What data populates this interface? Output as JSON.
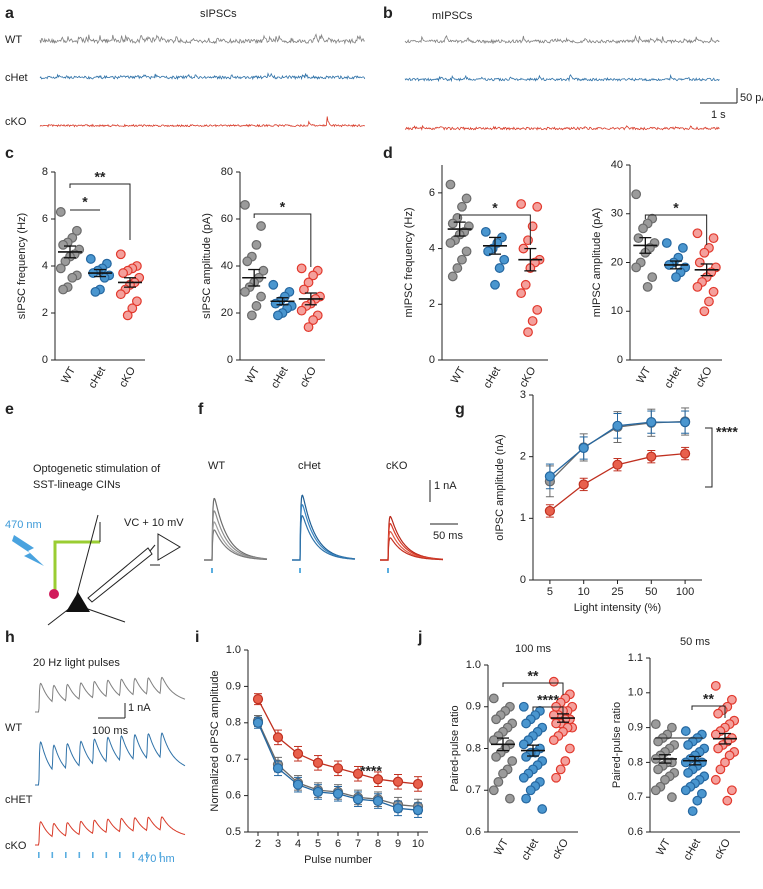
{
  "panels": [
    "a",
    "b",
    "c",
    "d",
    "e",
    "f",
    "g",
    "h",
    "i",
    "j"
  ],
  "panel_a": {
    "title": "sIPSCs",
    "labels": [
      "WT",
      "cHet",
      "cKO"
    ]
  },
  "panel_b": {
    "title": "mIPSCs",
    "scale": [
      "50 pA",
      "1 s"
    ]
  },
  "panel_e": {
    "title_lines": [
      "Optogenetic stimulation of",
      "SST-lineage CINs"
    ],
    "light": "470 nm",
    "clamp": "VC + 10 mV"
  },
  "panel_f": {
    "labels": [
      "WT",
      "cHet",
      "cKO"
    ],
    "scale": [
      "1 nA",
      "50 ms"
    ]
  },
  "panel_h": {
    "title": "20 Hz light pulses",
    "labels": [
      "WT",
      "cHET",
      "cKO"
    ],
    "scale": [
      "1 nA",
      "100 ms"
    ],
    "light": "470 nm"
  },
  "chart_data": [
    {
      "type": "strip",
      "ylabel": "sIPSC frequency (Hz)",
      "categories": [
        "WT",
        "cHet",
        "cKO"
      ],
      "series": [
        {
          "color": "#9b9b9b",
          "edgecolor": "#6a6a6a",
          "values": [
            6.3,
            5.5,
            5.2,
            5.0,
            4.9,
            4.7,
            4.5,
            4.4,
            4.2,
            3.9,
            3.6,
            3.5,
            3.1,
            3.0
          ],
          "mean": 4.6,
          "sem": 0.25
        },
        {
          "color": "#4a96cf",
          "edgecolor": "#2567a0",
          "values": [
            4.3,
            4.1,
            3.9,
            3.8,
            3.7,
            3.6,
            3.5,
            3.0,
            2.9
          ],
          "mean": 3.7,
          "sem": 0.15
        },
        {
          "color": "#f4a09c",
          "edgecolor": "#e2392d",
          "values": [
            4.5,
            4.0,
            3.9,
            3.8,
            3.7,
            3.5,
            3.3,
            3.2,
            3.0,
            2.8,
            2.5,
            2.2,
            1.9
          ],
          "mean": 3.3,
          "sem": 0.2
        }
      ],
      "ylim": [
        0,
        8
      ],
      "yticks": [
        0,
        2,
        4,
        6,
        8
      ],
      "annotations": [
        "**",
        "*"
      ]
    },
    {
      "type": "strip",
      "ylabel": "sIPSC amplitude (pA)",
      "categories": [
        "WT",
        "cHet",
        "cKO"
      ],
      "series": [
        {
          "color": "#9b9b9b",
          "edgecolor": "#6a6a6a",
          "values": [
            66,
            57,
            49,
            44,
            42,
            38,
            35,
            33,
            31,
            29,
            27,
            23,
            19
          ],
          "mean": 35,
          "sem": 3.5
        },
        {
          "color": "#4a96cf",
          "edgecolor": "#2567a0",
          "values": [
            32,
            29,
            27,
            25,
            24,
            23,
            22,
            20,
            19
          ],
          "mean": 25,
          "sem": 1.5
        },
        {
          "color": "#f4a09c",
          "edgecolor": "#e2392d",
          "values": [
            39,
            38,
            36,
            33,
            30,
            27,
            26,
            24,
            23,
            21,
            19,
            17,
            14
          ],
          "mean": 26,
          "sem": 2.5
        }
      ],
      "ylim": [
        0,
        80
      ],
      "yticks": [
        0,
        20,
        40,
        60,
        80
      ],
      "annotations": [
        "*"
      ]
    },
    {
      "type": "strip",
      "ylabel": "mIPSC frequency (Hz)",
      "categories": [
        "WT",
        "cHet",
        "cKO"
      ],
      "series": [
        {
          "color": "#9b9b9b",
          "edgecolor": "#6a6a6a",
          "values": [
            6.3,
            5.8,
            5.5,
            5.1,
            4.9,
            4.8,
            4.6,
            4.5,
            4.3,
            4.2,
            3.9,
            3.6,
            3.3,
            3.0
          ],
          "mean": 4.7,
          "sem": 0.25
        },
        {
          "color": "#4a96cf",
          "edgecolor": "#2567a0",
          "values": [
            4.6,
            4.4,
            4.2,
            4.0,
            3.9,
            3.6,
            3.3,
            2.7
          ],
          "mean": 4.1,
          "sem": 0.3
        },
        {
          "color": "#f4a09c",
          "edgecolor": "#e2392d",
          "values": [
            5.6,
            5.5,
            4.8,
            4.3,
            4.0,
            3.6,
            3.5,
            3.3,
            2.7,
            2.4,
            1.8,
            1.4,
            1.0
          ],
          "mean": 3.6,
          "sem": 0.4
        }
      ],
      "ylim": [
        0,
        7
      ],
      "yticks": [
        0,
        2,
        4,
        6
      ],
      "annotations": [
        "*"
      ]
    },
    {
      "type": "strip",
      "ylabel": "mIPSC amplitude (pA)",
      "categories": [
        "WT",
        "cHet",
        "cKO"
      ],
      "series": [
        {
          "color": "#9b9b9b",
          "edgecolor": "#6a6a6a",
          "values": [
            34,
            29,
            28,
            27,
            25,
            24,
            23,
            22,
            20,
            19,
            17,
            15
          ],
          "mean": 23.5,
          "sem": 1.6
        },
        {
          "color": "#4a96cf",
          "edgecolor": "#2567a0",
          "values": [
            24,
            23,
            21,
            20,
            19.5,
            19,
            18,
            17
          ],
          "mean": 19.5,
          "sem": 0.8
        },
        {
          "color": "#f4a09c",
          "edgecolor": "#e2392d",
          "values": [
            26,
            25,
            23,
            22,
            20,
            19,
            18,
            17,
            16,
            15,
            14,
            12,
            10
          ],
          "mean": 18.5,
          "sem": 1.2
        }
      ],
      "ylim": [
        0,
        40
      ],
      "yticks": [
        0,
        10,
        20,
        30,
        40
      ],
      "annotations": [
        "*"
      ]
    },
    {
      "type": "line",
      "ylabel": "oIPSC amplitude (nA)",
      "xlabel": "Light intensity (%)",
      "categories": [
        "5",
        "10",
        "25",
        "50",
        "100"
      ],
      "series": [
        {
          "color": "#9b9b9b",
          "edgecolor": "#6a6a6a",
          "values": [
            1.6,
            2.15,
            2.48,
            2.55,
            2.57
          ],
          "errors": [
            0.25,
            0.22,
            0.25,
            0.22,
            0.22
          ]
        },
        {
          "color": "#4a96cf",
          "edgecolor": "#2567a0",
          "values": [
            1.68,
            2.14,
            2.5,
            2.56,
            2.56
          ],
          "errors": [
            0.2,
            0.18,
            0.2,
            0.18,
            0.18
          ]
        },
        {
          "color": "#e8604c",
          "edgecolor": "#c03020",
          "values": [
            1.12,
            1.55,
            1.87,
            2.0,
            2.05
          ],
          "errors": [
            0.1,
            0.1,
            0.1,
            0.1,
            0.1
          ]
        }
      ],
      "ylim": [
        0,
        3
      ],
      "yticks": [
        0,
        1,
        2,
        3
      ],
      "annotations": [
        "****"
      ]
    },
    {
      "type": "line",
      "ylabel": "Normalized oIPSC amplitude",
      "xlabel": "Pulse number",
      "categories": [
        "2",
        "3",
        "4",
        "5",
        "6",
        "7",
        "8",
        "9",
        "10"
      ],
      "series": [
        {
          "color": "#9b9b9b",
          "edgecolor": "#6a6a6a",
          "values": [
            0.805,
            0.685,
            0.635,
            0.615,
            0.61,
            0.595,
            0.59,
            0.575,
            0.57
          ],
          "errors": [
            0.015,
            0.02,
            0.02,
            0.02,
            0.02,
            0.02,
            0.02,
            0.02,
            0.02
          ]
        },
        {
          "color": "#4a96cf",
          "edgecolor": "#2567a0",
          "values": [
            0.8,
            0.675,
            0.63,
            0.61,
            0.605,
            0.59,
            0.585,
            0.565,
            0.56
          ],
          "errors": [
            0.015,
            0.02,
            0.02,
            0.02,
            0.02,
            0.02,
            0.02,
            0.02,
            0.02
          ]
        },
        {
          "color": "#e8604c",
          "edgecolor": "#c03020",
          "values": [
            0.865,
            0.76,
            0.715,
            0.69,
            0.675,
            0.66,
            0.645,
            0.638,
            0.632
          ],
          "errors": [
            0.015,
            0.02,
            0.02,
            0.02,
            0.02,
            0.02,
            0.02,
            0.02,
            0.02
          ]
        }
      ],
      "ylim": [
        0.5,
        1
      ],
      "yticks": [
        0.5,
        0.6,
        0.7,
        0.8,
        0.9,
        {
          "value": 1,
          "label": "1.0"
        }
      ],
      "annotations": [
        "****"
      ]
    },
    {
      "type": "strip",
      "title": "100 ms",
      "ylabel": "Paired-pulse ratio",
      "categories": [
        "WT",
        "cHet",
        "cKO"
      ],
      "series": [
        {
          "color": "#9b9b9b",
          "edgecolor": "#6a6a6a",
          "values": [
            0.92,
            0.9,
            0.89,
            0.88,
            0.87,
            0.86,
            0.85,
            0.84,
            0.83,
            0.82,
            0.81,
            0.8,
            0.79,
            0.78,
            0.77,
            0.75,
            0.74,
            0.72,
            0.7,
            0.68
          ],
          "mean": 0.81,
          "sem": 0.015
        },
        {
          "color": "#4a96cf",
          "edgecolor": "#2567a0",
          "values": [
            0.9,
            0.89,
            0.88,
            0.87,
            0.86,
            0.85,
            0.84,
            0.83,
            0.82,
            0.81,
            0.8,
            0.79,
            0.79,
            0.78,
            0.77,
            0.76,
            0.75,
            0.74,
            0.73,
            0.72,
            0.71,
            0.7,
            0.68,
            0.655
          ],
          "mean": 0.795,
          "sem": 0.013
        },
        {
          "color": "#f4a09c",
          "edgecolor": "#e2392d",
          "values": [
            0.96,
            0.93,
            0.92,
            0.91,
            0.9,
            0.9,
            0.89,
            0.89,
            0.88,
            0.88,
            0.87,
            0.87,
            0.86,
            0.86,
            0.85,
            0.85,
            0.84,
            0.83,
            0.82,
            0.8,
            0.77,
            0.75,
            0.73
          ],
          "mean": 0.873,
          "sem": 0.01
        }
      ],
      "ylim": [
        0.6,
        1
      ],
      "yticks": [
        0.6,
        0.7,
        0.8,
        0.9,
        {
          "value": 1,
          "label": "1.0"
        }
      ],
      "annotations": [
        "**",
        "****"
      ]
    },
    {
      "type": "strip",
      "title": "50 ms",
      "ylabel": "Paired-pulse ratio",
      "categories": [
        "WT",
        "cHet",
        "cKO"
      ],
      "series": [
        {
          "color": "#9b9b9b",
          "edgecolor": "#6a6a6a",
          "values": [
            0.91,
            0.9,
            0.88,
            0.87,
            0.86,
            0.85,
            0.84,
            0.83,
            0.82,
            0.81,
            0.8,
            0.8,
            0.79,
            0.78,
            0.77,
            0.76,
            0.75,
            0.73,
            0.72,
            0.7
          ],
          "mean": 0.81,
          "sem": 0.012
        },
        {
          "color": "#4a96cf",
          "edgecolor": "#2567a0",
          "values": [
            0.89,
            0.88,
            0.87,
            0.86,
            0.85,
            0.84,
            0.83,
            0.82,
            0.81,
            0.8,
            0.8,
            0.79,
            0.78,
            0.77,
            0.76,
            0.75,
            0.74,
            0.73,
            0.72,
            0.71,
            0.69,
            0.66
          ],
          "mean": 0.805,
          "sem": 0.012
        },
        {
          "color": "#f4a09c",
          "edgecolor": "#e2392d",
          "values": [
            1.02,
            0.98,
            0.96,
            0.95,
            0.94,
            0.92,
            0.91,
            0.9,
            0.89,
            0.88,
            0.87,
            0.86,
            0.85,
            0.84,
            0.83,
            0.82,
            0.8,
            0.78,
            0.75,
            0.72,
            0.69
          ],
          "mean": 0.868,
          "sem": 0.015
        }
      ],
      "ylim": [
        0.6,
        1.1
      ],
      "yticks": [
        0.6,
        0.7,
        0.8,
        0.9,
        {
          "value": 1,
          "label": "1.0"
        },
        1.1
      ],
      "annotations": [
        "**"
      ]
    }
  ]
}
